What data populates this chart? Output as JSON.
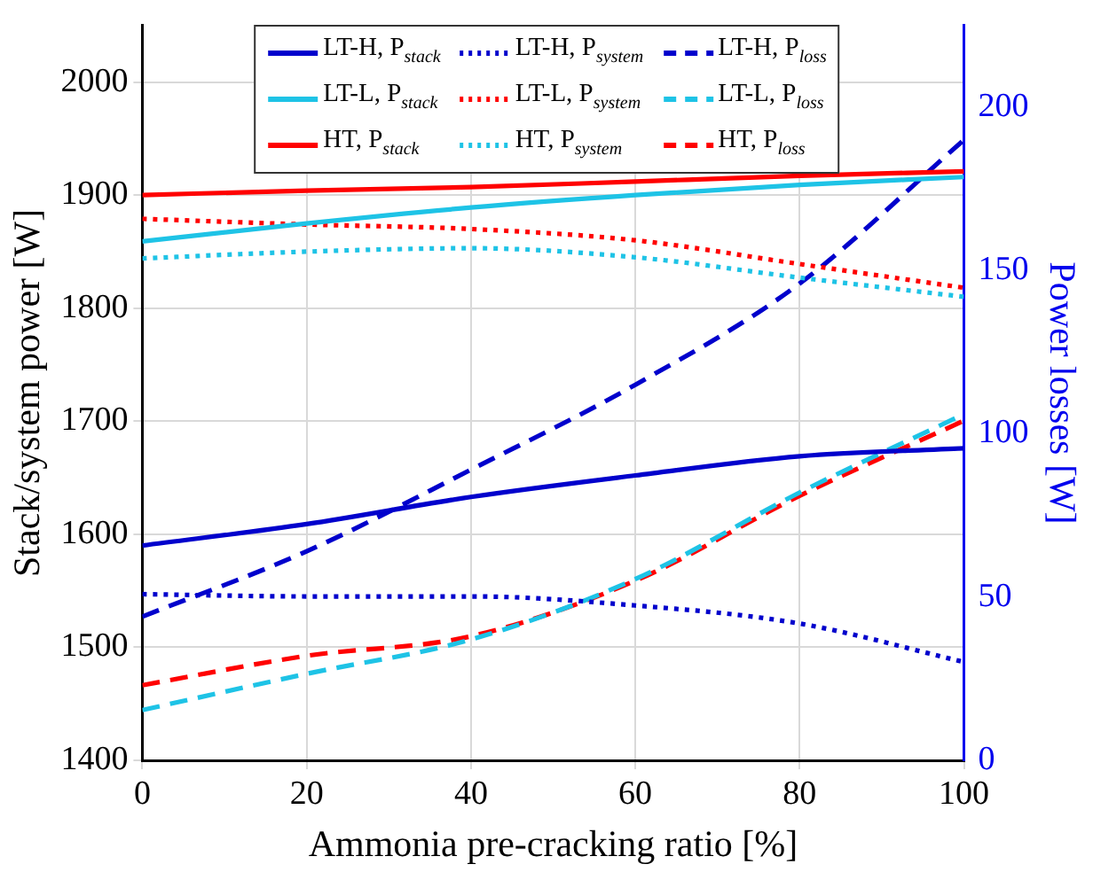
{
  "chart_data": {
    "type": "line",
    "xlabel": "Ammonia pre-cracking ratio [%]",
    "ylabel": "Stack/system power [W]",
    "y2label": "Power losses [W]",
    "x": [
      0,
      20,
      40,
      60,
      80,
      100
    ],
    "xlim": [
      0,
      100
    ],
    "xticks": [
      0,
      20,
      40,
      60,
      80,
      100
    ],
    "ylim": [
      1400,
      2050
    ],
    "yticks": [
      1400,
      1500,
      1600,
      1700,
      1800,
      1900,
      2000
    ],
    "y2lim": [
      0,
      225
    ],
    "y2ticks": [
      0,
      50,
      100,
      150,
      200
    ],
    "grid": true,
    "legend": "top",
    "marker": "none",
    "series": [
      {
        "name": "LT-H, P$_{stack}$",
        "color": "#0000cc",
        "line_style": "solid",
        "values": [
          1590,
          1609,
          1633,
          1652,
          1669,
          1676
        ]
      },
      {
        "name": "LT-L, P$_{stack}$",
        "color": "#1ec3e6",
        "line_style": "solid",
        "values": [
          1859,
          1875,
          1889,
          1900,
          1909,
          1916
        ]
      },
      {
        "name": "HT, P$_{stack}$",
        "color": "#ff0000",
        "line_style": "solid",
        "values": [
          1900,
          1904,
          1907,
          1912,
          1917,
          1921
        ]
      },
      {
        "name": "LT-H, P$_{system}$",
        "color": "#0000cc",
        "line_style": "dotted",
        "values": [
          1547,
          1545,
          1545,
          1537,
          1521,
          1487
        ]
      },
      {
        "name": "LT-L, P$_{system}$",
        "color": "#ff0000",
        "line_style": "dotted",
        "values": [
          1879,
          1874,
          1870,
          1860,
          1839,
          1818
        ]
      },
      {
        "name": "HT, P$_{system}$",
        "color": "#1ec3e6",
        "line_style": "dotted",
        "values": [
          1844,
          1850,
          1853,
          1845,
          1827,
          1810
        ]
      },
      {
        "name": "LT-H, P$_{loss}$",
        "color": "#0000cc",
        "line_style": "dashed",
        "axis": "y2",
        "values": [
          44,
          64,
          89,
          115,
          146,
          190
        ]
      },
      {
        "name": "LT-L, P$_{loss}$",
        "color": "#1ec3e6",
        "line_style": "dashed",
        "axis": "y2",
        "values": [
          15.4,
          26.5,
          37,
          55.5,
          82,
          106
        ]
      },
      {
        "name": "HT, P$_{loss}$",
        "color": "#ff0000",
        "line_style": "dashed",
        "axis": "y2",
        "values": [
          23,
          32,
          38,
          55,
          81,
          104
        ]
      }
    ]
  }
}
